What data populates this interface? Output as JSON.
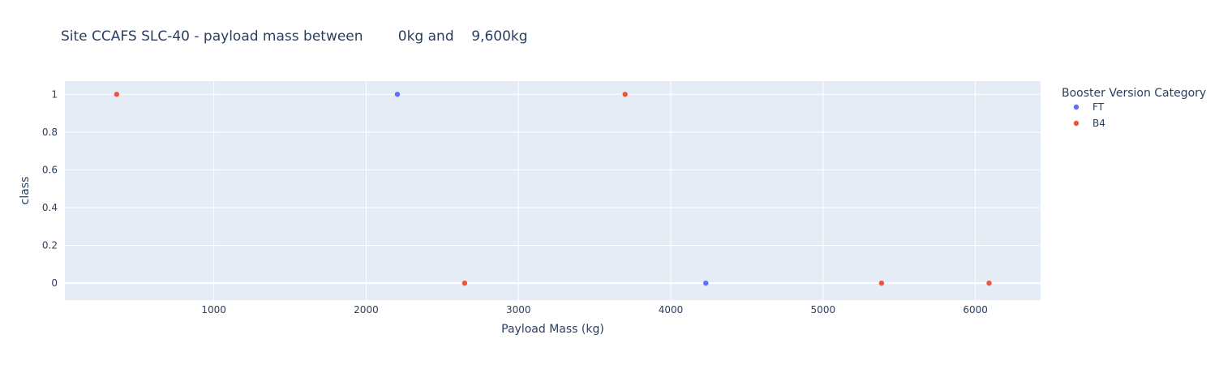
{
  "chart_data": {
    "type": "scatter",
    "title": "Site CCAFS SLC-40 - payload mass between        0kg and    9,600kg",
    "xlabel": "Payload Mass (kg)",
    "ylabel": "class",
    "xlim": [
      22,
      6428
    ],
    "ylim": [
      -0.09,
      1.07
    ],
    "xticks": [
      1000,
      2000,
      3000,
      4000,
      5000,
      6000
    ],
    "yticks": [
      0,
      0.2,
      0.4,
      0.6,
      0.8,
      1
    ],
    "ytick_labels": [
      "0",
      "0.2",
      "0.4",
      "0.6",
      "0.8",
      "1"
    ],
    "grid": true,
    "legend": {
      "title": "Booster Version Category",
      "placement": "right"
    },
    "series": [
      {
        "name": "FT",
        "color": "#636efa",
        "points": [
          {
            "x": 2205,
            "y": 1
          },
          {
            "x": 4230,
            "y": 0
          }
        ]
      },
      {
        "name": "B4",
        "color": "#ef553b",
        "points": [
          {
            "x": 362,
            "y": 1
          },
          {
            "x": 2647,
            "y": 0
          },
          {
            "x": 3700,
            "y": 1
          },
          {
            "x": 5384,
            "y": 0
          },
          {
            "x": 6090,
            "y": 0
          }
        ]
      }
    ]
  }
}
